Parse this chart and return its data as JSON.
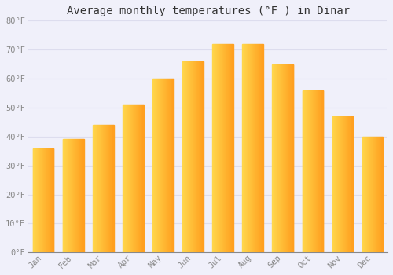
{
  "title": "Average monthly temperatures (°F ) in Dinar",
  "months": [
    "Jan",
    "Feb",
    "Mar",
    "Apr",
    "May",
    "Jun",
    "Jul",
    "Aug",
    "Sep",
    "Oct",
    "Nov",
    "Dec"
  ],
  "values": [
    36,
    39,
    44,
    51,
    60,
    66,
    72,
    72,
    65,
    56,
    47,
    40
  ],
  "bar_color_left": "#FFD84D",
  "bar_color_right": "#FFA020",
  "background_color": "#F0F0FA",
  "grid_color": "#DDDDEE",
  "ylim": [
    0,
    80
  ],
  "yticks": [
    0,
    10,
    20,
    30,
    40,
    50,
    60,
    70,
    80
  ],
  "ytick_labels": [
    "0°F",
    "10°F",
    "20°F",
    "30°F",
    "40°F",
    "50°F",
    "60°F",
    "70°F",
    "80°F"
  ],
  "title_fontsize": 10,
  "tick_fontsize": 7.5,
  "title_font_color": "#333333",
  "tick_color": "#888888",
  "font_family": "monospace",
  "bar_width": 0.7
}
